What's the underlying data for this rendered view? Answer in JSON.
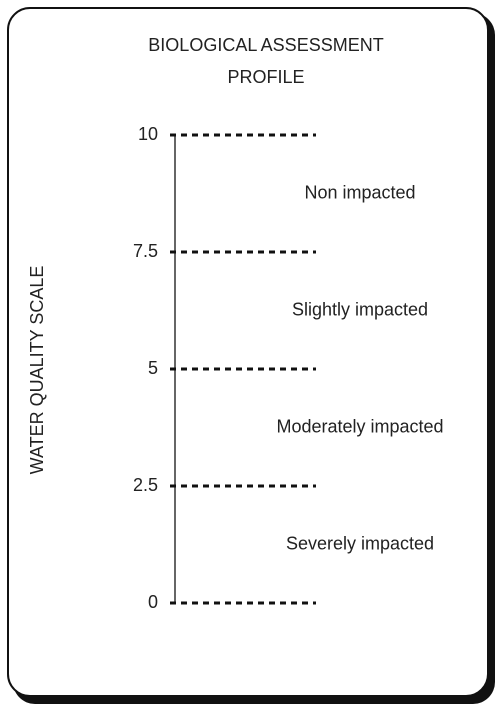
{
  "chart_data": {
    "type": "scale",
    "title_lines": [
      "BIOLOGICAL ASSESSMENT",
      "PROFILE"
    ],
    "y_label": "WATER QUALITY SCALE",
    "ylim": [
      0,
      10
    ],
    "yticks": [
      0,
      2.5,
      5,
      7.5,
      10
    ],
    "zones": [
      "Severely impacted",
      "Moderately impacted",
      "Slightly impacted",
      "Non impacted"
    ]
  }
}
